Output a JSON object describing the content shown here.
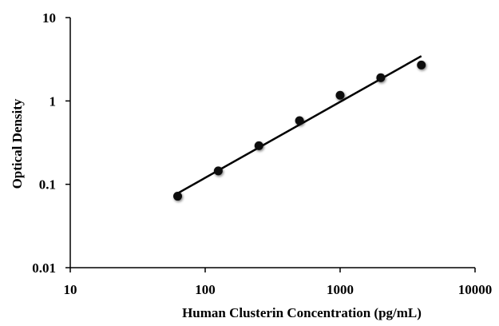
{
  "chart_data": {
    "type": "scatter",
    "title": "",
    "xlabel": "Human Clusterin Concentration (pg/mL)",
    "ylabel": "Optical Density",
    "xscale": "log",
    "yscale": "log",
    "xlim": [
      10,
      10000
    ],
    "ylim": [
      0.01,
      10
    ],
    "xticks": [
      "10",
      "100",
      "1000",
      "10000"
    ],
    "yticks": [
      "0.01",
      "0.1",
      "1",
      "10"
    ],
    "grid": false,
    "legend": "none",
    "series": [
      {
        "x": [
          62.5,
          125,
          250,
          500,
          1000,
          2000,
          4000
        ],
        "y": [
          0.072,
          0.145,
          0.29,
          0.58,
          1.17,
          1.9,
          2.7
        ]
      }
    ],
    "trendline": {
      "type": "power",
      "x": [
        62.5,
        4000
      ],
      "y": [
        0.078,
        3.45
      ]
    },
    "colors": {
      "marker": "#111111",
      "line": "#000000",
      "axis": "#000000"
    }
  }
}
